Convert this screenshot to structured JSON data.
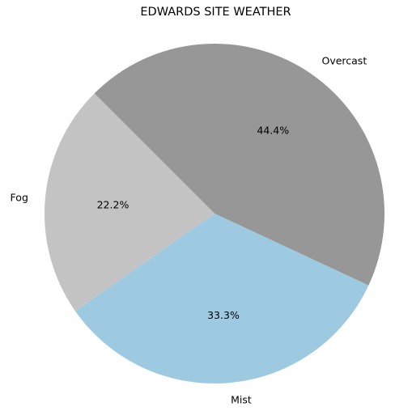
{
  "chart_data": {
    "type": "pie",
    "title": "EDWARDS SITE WEATHER",
    "slices": [
      {
        "label": "Overcast",
        "value": 44.4,
        "pct_label": "44.4%",
        "color": "#979797"
      },
      {
        "label": "Mist",
        "value": 33.3,
        "pct_label": "33.3%",
        "color": "#9ecae1"
      },
      {
        "label": "Fog",
        "value": 22.2,
        "pct_label": "22.2%",
        "color": "#c3c3c3"
      }
    ],
    "legend": "none"
  }
}
